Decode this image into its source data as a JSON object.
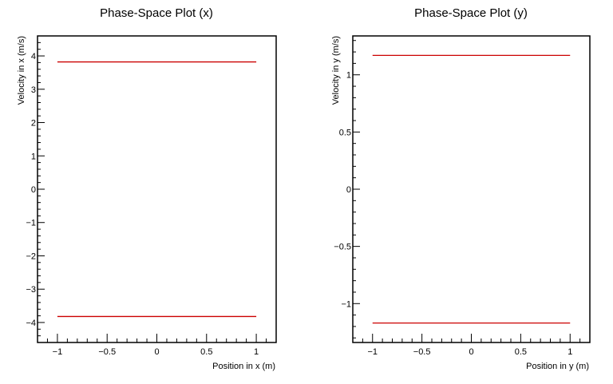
{
  "chart_data": [
    {
      "type": "line",
      "title": "Phase-Space Plot (x)",
      "xlabel": "Position in x (m)",
      "ylabel": "Velocity in x (m/s)",
      "xlim": [
        -1.2,
        1.2
      ],
      "ylim": [
        -4.6,
        4.6
      ],
      "grid": false,
      "x_ticks": [
        -1,
        -0.5,
        0,
        0.5,
        1
      ],
      "x_tick_labels": [
        "−1",
        "−0.5",
        "0",
        "0.5",
        "1"
      ],
      "y_ticks": [
        -4,
        -3,
        -2,
        -1,
        0,
        1,
        2,
        3,
        4
      ],
      "y_tick_labels": [
        "−4",
        "−3",
        "−2",
        "−1",
        "0",
        "1",
        "2",
        "3",
        "4"
      ],
      "line_color": "#cc0000",
      "series": [
        {
          "x": [
            -1,
            1
          ],
          "y": [
            3.82,
            3.82
          ]
        },
        {
          "x": [
            -1,
            1
          ],
          "y": [
            -3.82,
            -3.82
          ]
        }
      ]
    },
    {
      "type": "line",
      "title": "Phase-Space Plot (y)",
      "xlabel": "Position in y (m)",
      "ylabel": "Velocity in y (m/s)",
      "xlim": [
        -1.2,
        1.2
      ],
      "ylim": [
        -1.34,
        1.34
      ],
      "grid": false,
      "x_ticks": [
        -1,
        -0.5,
        0,
        0.5,
        1
      ],
      "x_tick_labels": [
        "−1",
        "−0.5",
        "0",
        "0.5",
        "1"
      ],
      "y_ticks": [
        -1,
        -0.5,
        0,
        0.5,
        1
      ],
      "y_tick_labels": [
        "−1",
        "−0.5",
        "0",
        "0.5",
        "1"
      ],
      "line_color": "#cc0000",
      "series": [
        {
          "x": [
            -1,
            1
          ],
          "y": [
            1.17,
            1.17
          ]
        },
        {
          "x": [
            -1,
            1
          ],
          "y": [
            -1.17,
            -1.17
          ]
        }
      ]
    }
  ]
}
